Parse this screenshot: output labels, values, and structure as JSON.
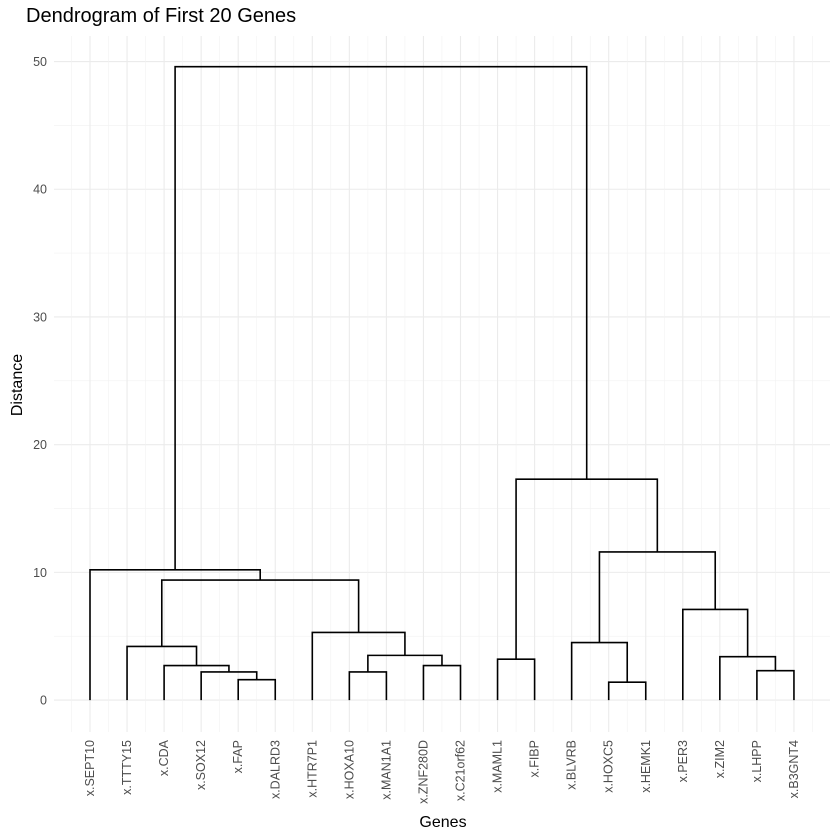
{
  "chart_data": {
    "type": "dendrogram",
    "title": "Dendrogram of First 20 Genes",
    "xlabel": "Genes",
    "ylabel": "Distance",
    "ylim": [
      -2.5,
      52
    ],
    "yticks": [
      0,
      10,
      20,
      30,
      40,
      50
    ],
    "grid": true,
    "leaves": [
      "x.SEPT10",
      "x.TTTY15",
      "x.CDA",
      "x.SOX12",
      "x.FAP",
      "x.DALRD3",
      "x.HTR7P1",
      "x.HOXA10",
      "x.MAN1A1",
      "x.ZNF280D",
      "x.C21orf62",
      "x.MAML1",
      "x.FIBP",
      "x.BLVRB",
      "x.HOXC5",
      "x.HEMK1",
      "x.PER3",
      "x.ZIM2",
      "x.LHPP",
      "x.B3GNT4"
    ],
    "merges": [
      {
        "a": "x.FAP",
        "b": "x.DALRD3",
        "height": 1.6
      },
      {
        "a": "x.SOX12",
        "b": "m1",
        "height": 2.2
      },
      {
        "a": "x.CDA",
        "b": "m2",
        "height": 2.7
      },
      {
        "a": "x.TTTY15",
        "b": "m3",
        "height": 4.2
      },
      {
        "a": "x.HOXA10",
        "b": "x.MAN1A1",
        "height": 2.2
      },
      {
        "a": "x.ZNF280D",
        "b": "x.C21orf62",
        "height": 2.7
      },
      {
        "a": "m5",
        "b": "m6",
        "height": 3.5
      },
      {
        "a": "x.HTR7P1",
        "b": "m7",
        "height": 5.3
      },
      {
        "a": "m4",
        "b": "m8",
        "height": 9.4
      },
      {
        "a": "x.SEPT10",
        "b": "m9",
        "height": 10.2
      },
      {
        "a": "x.MAML1",
        "b": "x.FIBP",
        "height": 3.2
      },
      {
        "a": "x.HOXC5",
        "b": "x.HEMK1",
        "height": 1.4
      },
      {
        "a": "x.BLVRB",
        "b": "m12",
        "height": 4.5
      },
      {
        "a": "x.LHPP",
        "b": "x.B3GNT4",
        "height": 2.3
      },
      {
        "a": "x.ZIM2",
        "b": "m14",
        "height": 3.4
      },
      {
        "a": "x.PER3",
        "b": "m15",
        "height": 7.1
      },
      {
        "a": "m13",
        "b": "m16",
        "height": 11.6
      },
      {
        "a": "m11",
        "b": "m17",
        "height": 17.3
      },
      {
        "a": "m10",
        "b": "m18",
        "height": 49.6
      }
    ]
  }
}
